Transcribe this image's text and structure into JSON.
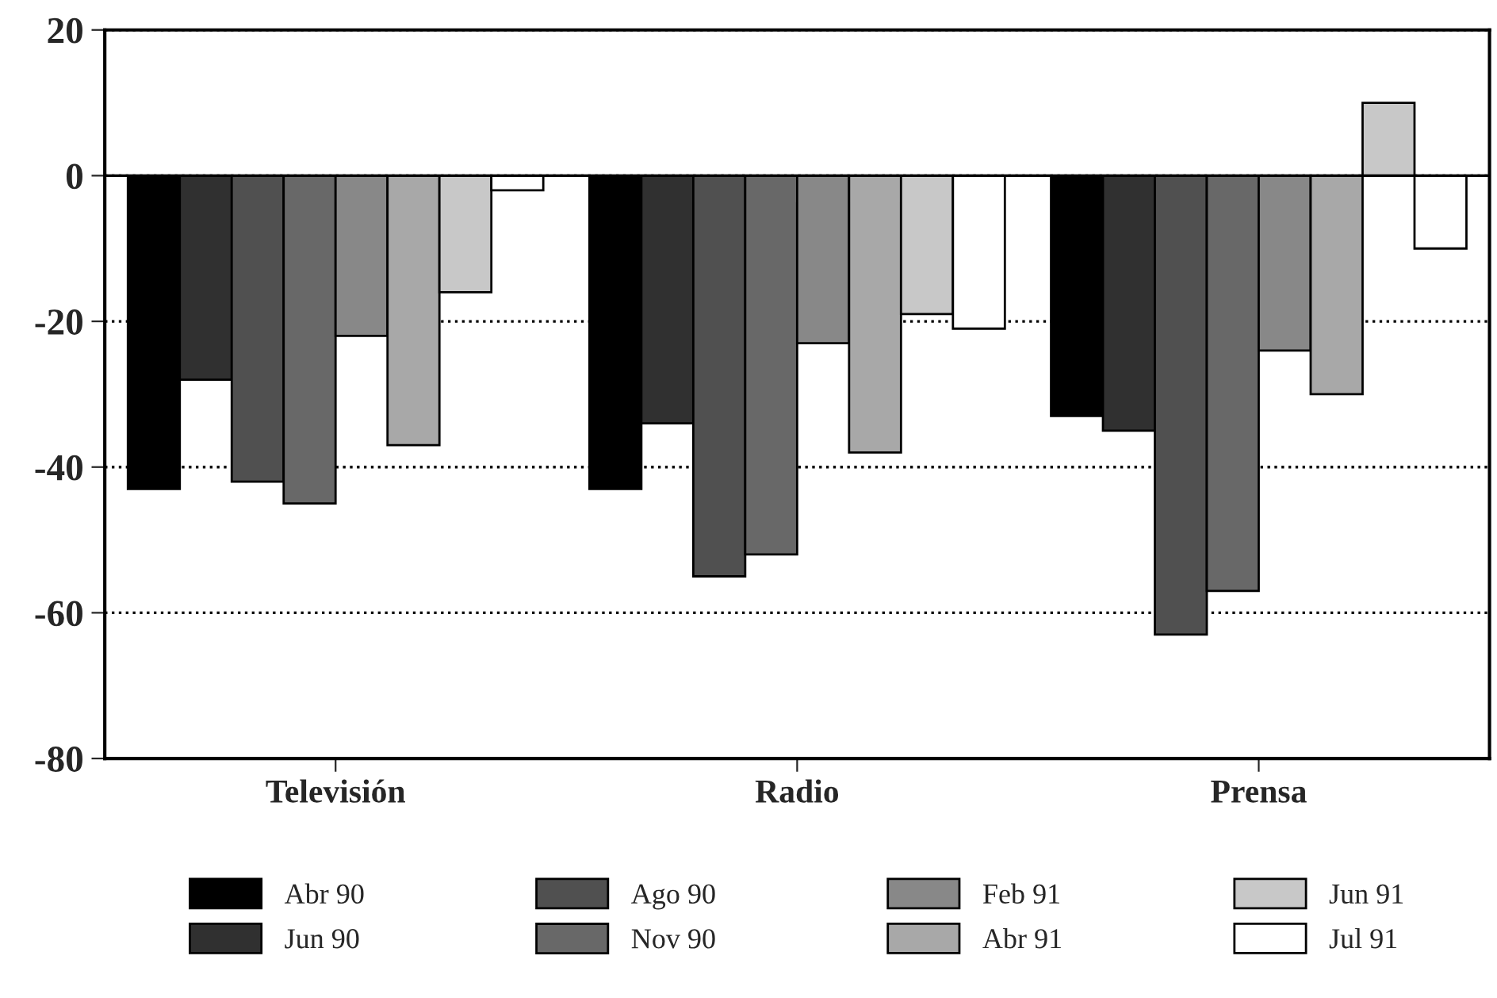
{
  "chart_data": {
    "type": "bar",
    "categories": [
      "Televisión",
      "Radio",
      "Prensa"
    ],
    "series": [
      {
        "name": "Abr 90",
        "color": "#000000",
        "values": [
          -43,
          -43,
          -33
        ]
      },
      {
        "name": "Jun 90",
        "color": "#303030",
        "values": [
          -28,
          -34,
          -35
        ]
      },
      {
        "name": "Ago 90",
        "color": "#505050",
        "values": [
          -42,
          -55,
          -63
        ]
      },
      {
        "name": "Nov 90",
        "color": "#686868",
        "values": [
          -45,
          -52,
          -57
        ]
      },
      {
        "name": "Feb 91",
        "color": "#888888",
        "values": [
          -22,
          -23,
          -24
        ]
      },
      {
        "name": "Abr 91",
        "color": "#a8a8a8",
        "values": [
          -37,
          -38,
          -30
        ]
      },
      {
        "name": "Jun 91",
        "color": "#c8c8c8",
        "values": [
          -16,
          -19,
          10
        ]
      },
      {
        "name": "Jul 91",
        "color": "#ffffff",
        "values": [
          -2,
          -21,
          -10
        ]
      }
    ],
    "ylim": [
      -80,
      20
    ],
    "yticks": [
      -80,
      -60,
      -40,
      -20,
      0,
      20
    ],
    "grid": "y",
    "ref_lines": [
      {
        "axis": "y",
        "value": 0,
        "color": "#000000"
      }
    ],
    "legend": "bottom"
  }
}
